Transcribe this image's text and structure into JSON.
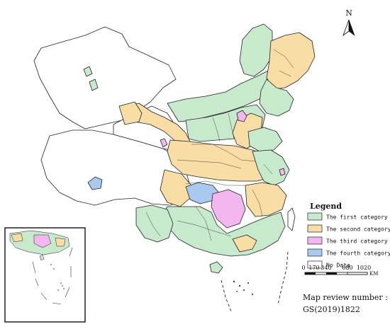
{
  "north_arrow": {
    "label": "N"
  },
  "legend": {
    "title": "Legend",
    "items": [
      {
        "label": "The first category",
        "color": "#c6eacb"
      },
      {
        "label": "The second category",
        "color": "#f8dea4"
      },
      {
        "label": "The third category",
        "color": "#f4b6ef"
      },
      {
        "label": "The fourth category",
        "color": "#a9c9ef"
      },
      {
        "label": "No Data",
        "color": "#ffffff"
      }
    ]
  },
  "scale_bar": {
    "ticks": [
      "0",
      "170",
      "340",
      "680",
      "1020"
    ],
    "unit": "KM"
  },
  "review": {
    "line1": "Map review number :",
    "line2": "GS(2019)1822"
  },
  "colors": {
    "first": "#c6eacb",
    "second": "#f8dea4",
    "third": "#f4b6ef",
    "fourth": "#a9c9ef",
    "nodata": "#ffffff",
    "border": "#222222"
  }
}
